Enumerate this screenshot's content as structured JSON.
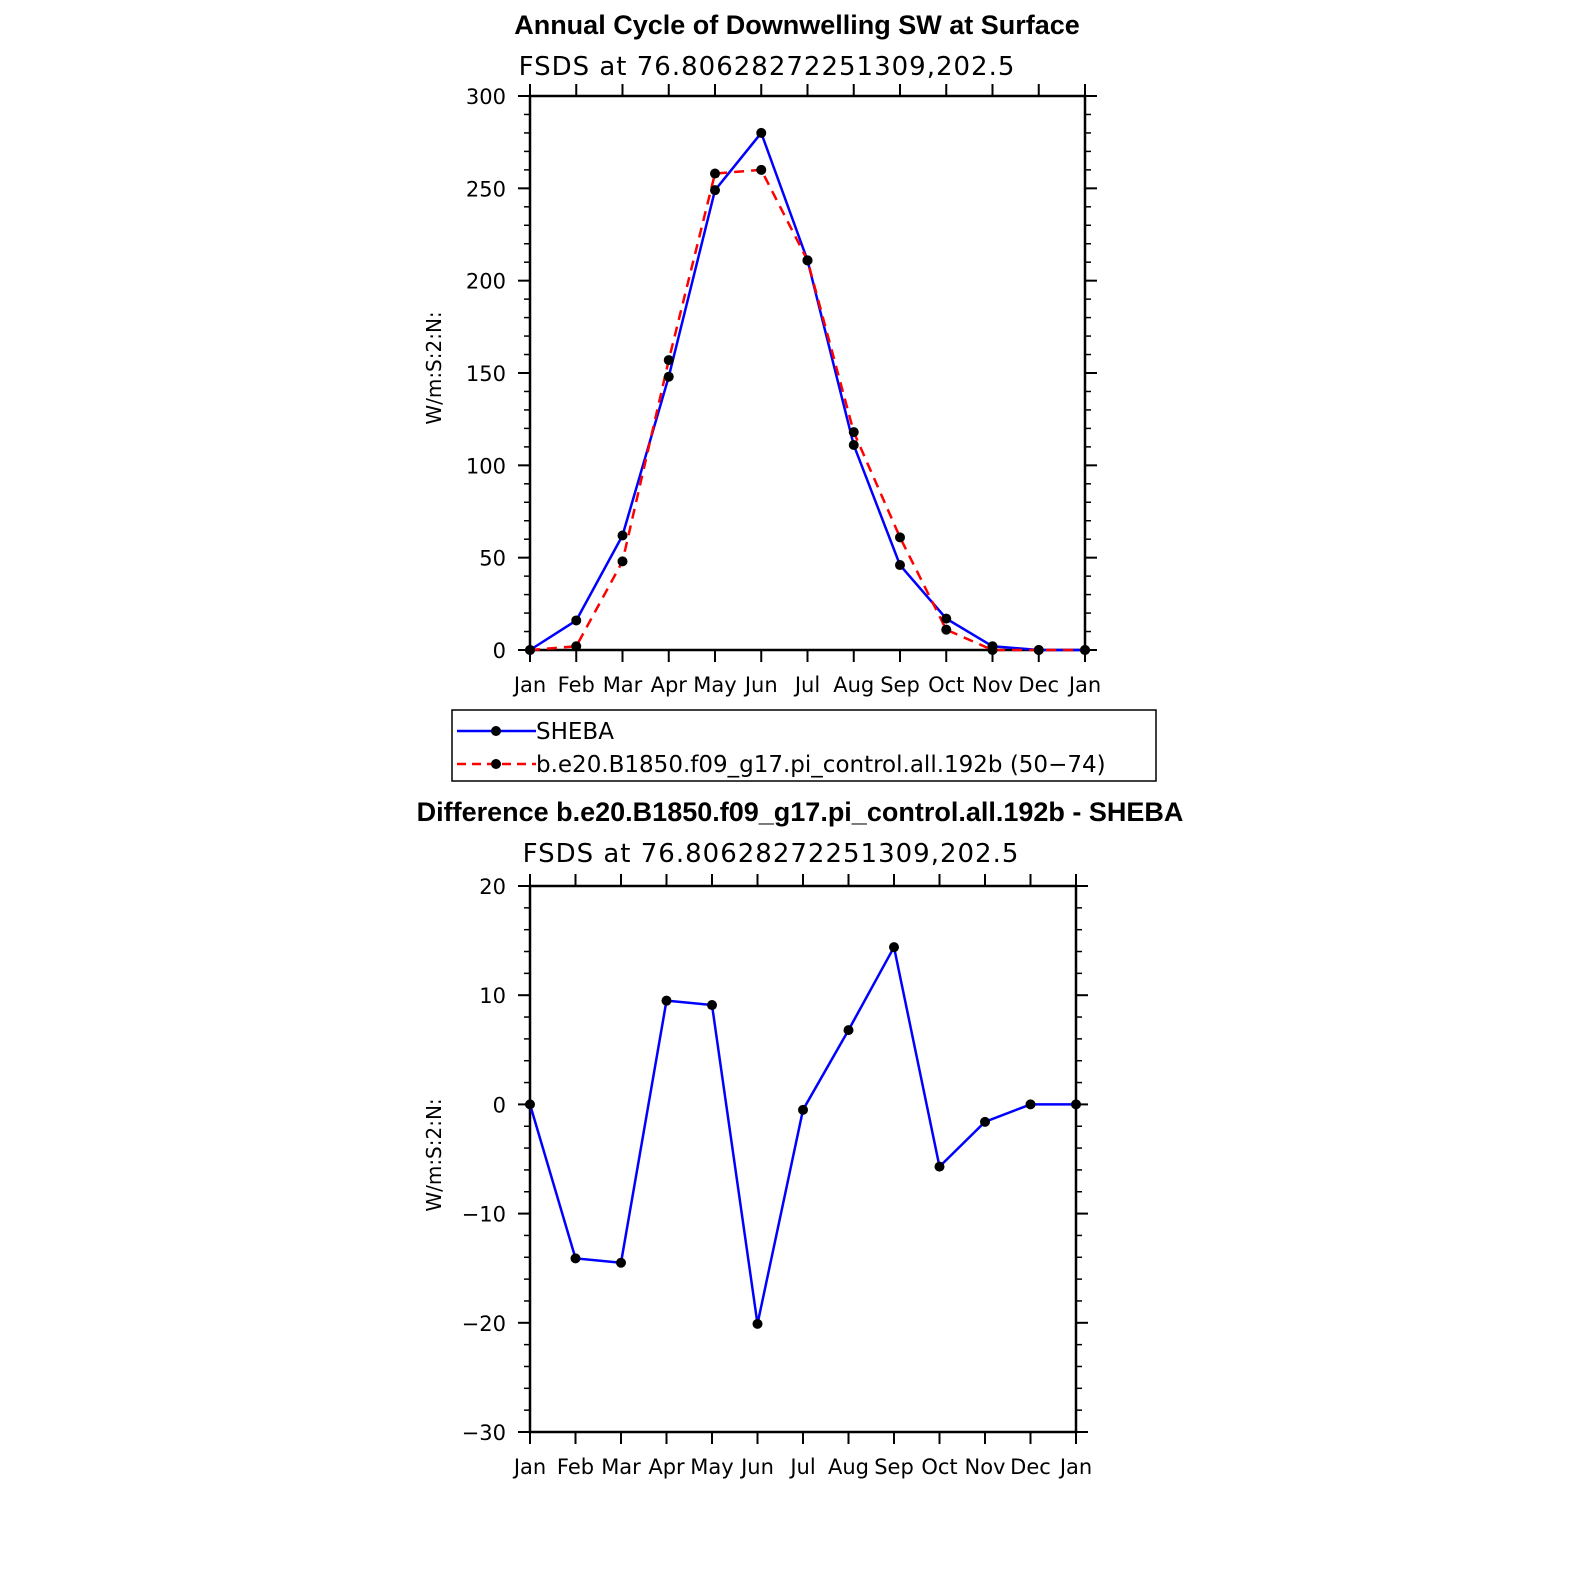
{
  "chart_data": [
    {
      "type": "line",
      "title": "Annual Cycle of Downwelling SW at Surface",
      "subtitle": "FSDS at 76.80628272251309,202.5",
      "ylabel": "W/m:S:2:N:",
      "xlabel": "",
      "categories": [
        "Jan",
        "Feb",
        "Mar",
        "Apr",
        "May",
        "Jun",
        "Jul",
        "Aug",
        "Sep",
        "Oct",
        "Nov",
        "Dec",
        "Jan"
      ],
      "ylim": [
        0,
        300
      ],
      "yticks": [
        0,
        50,
        100,
        150,
        200,
        250,
        300
      ],
      "series": [
        {
          "name": "SHEBA",
          "color": "#0000ff",
          "dash": "solid",
          "values": [
            0,
            16,
            62,
            148,
            249,
            280,
            211,
            111,
            46,
            17,
            2,
            0,
            0
          ]
        },
        {
          "name": "b.e20.B1850.f09_g17.pi_control.all.192b (50−74)",
          "color": "#ff0000",
          "dash": "dashed",
          "values": [
            0,
            2,
            48,
            157,
            258,
            260,
            211,
            118,
            61,
            11,
            0,
            0,
            0
          ]
        }
      ]
    },
    {
      "type": "line",
      "title": "Difference b.e20.B1850.f09_g17.pi_control.all.192b - SHEBA",
      "subtitle": "FSDS at 76.80628272251309,202.5",
      "ylabel": "W/m:S:2:N:",
      "xlabel": "",
      "categories": [
        "Jan",
        "Feb",
        "Mar",
        "Apr",
        "May",
        "Jun",
        "Jul",
        "Aug",
        "Sep",
        "Oct",
        "Nov",
        "Dec",
        "Jan"
      ],
      "ylim": [
        -30,
        20
      ],
      "yticks": [
        -30,
        -20,
        -10,
        0,
        10,
        20
      ],
      "series": [
        {
          "color": "#0000ff",
          "dash": "solid",
          "values": [
            0,
            -14.1,
            -14.5,
            9.5,
            9.1,
            -20.1,
            -0.5,
            6.8,
            14.4,
            -5.7,
            -1.6,
            0,
            0
          ]
        }
      ]
    }
  ]
}
